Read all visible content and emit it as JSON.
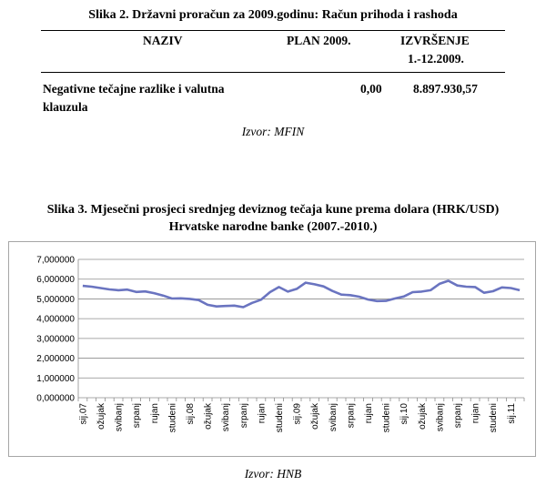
{
  "table_figure": {
    "caption": "Slika 2. Državni proračun za 2009.godinu: Račun prihoda i rashoda",
    "headers": {
      "naziv": "NAZIV",
      "plan": "PLAN 2009.",
      "izvrsenje_line1": "IZVRŠENJE",
      "izvrsenje_line2": "1.-12.2009."
    },
    "row": {
      "naziv_line1": "Negativne tečajne razlike i valutna",
      "naziv_line2": "klauzula",
      "plan": "0,00",
      "izvrsenje": "8.897.930,57"
    },
    "source": "Izvor: MFIN"
  },
  "chart_figure": {
    "caption_line1": "Slika 3. Mjesečni prosjeci srednjeg deviznog tečaja kune prema dolara (HRK/USD)",
    "caption_line2": "Hrvatske narodne banke (2007.-2010.)",
    "source": "Izvor: HNB"
  },
  "chart_data": {
    "type": "line",
    "title": "",
    "xlabel": "",
    "ylabel": "",
    "ylim": [
      0,
      7
    ],
    "yticks": [
      "0,000000",
      "1,000000",
      "2,000000",
      "3,000000",
      "4,000000",
      "5,000000",
      "6,000000",
      "7,000000"
    ],
    "grid": true,
    "line_color": "#6a74c0",
    "categories": [
      "sij.07",
      "",
      "ožujak",
      "",
      "svibanj",
      "",
      "srpanj",
      "",
      "rujan",
      "",
      "studeni",
      "",
      "sij.08",
      "",
      "ožujak",
      "",
      "svibanj",
      "",
      "srpanj",
      "",
      "rujan",
      "",
      "studeni",
      "",
      "sij.09",
      "",
      "ožujak",
      "",
      "svibanj",
      "",
      "srpanj",
      "",
      "rujan",
      "",
      "studeni",
      "",
      "sij.10",
      "",
      "ožujak",
      "",
      "svibanj",
      "",
      "srpanj",
      "",
      "rujan",
      "",
      "studeni",
      "",
      "sij.11",
      ""
    ],
    "series": [
      {
        "values": [
          5.66,
          5.62,
          5.55,
          5.48,
          5.44,
          5.47,
          5.35,
          5.38,
          5.29,
          5.17,
          5.02,
          5.03,
          5.0,
          4.94,
          4.7,
          4.62,
          4.64,
          4.66,
          4.58,
          4.8,
          4.96,
          5.34,
          5.6,
          5.37,
          5.51,
          5.82,
          5.74,
          5.63,
          5.4,
          5.22,
          5.19,
          5.11,
          4.97,
          4.89,
          4.9,
          5.02,
          5.12,
          5.34,
          5.37,
          5.44,
          5.76,
          5.92,
          5.68,
          5.62,
          5.6,
          5.31,
          5.39,
          5.58,
          5.55,
          5.44
        ]
      }
    ]
  }
}
